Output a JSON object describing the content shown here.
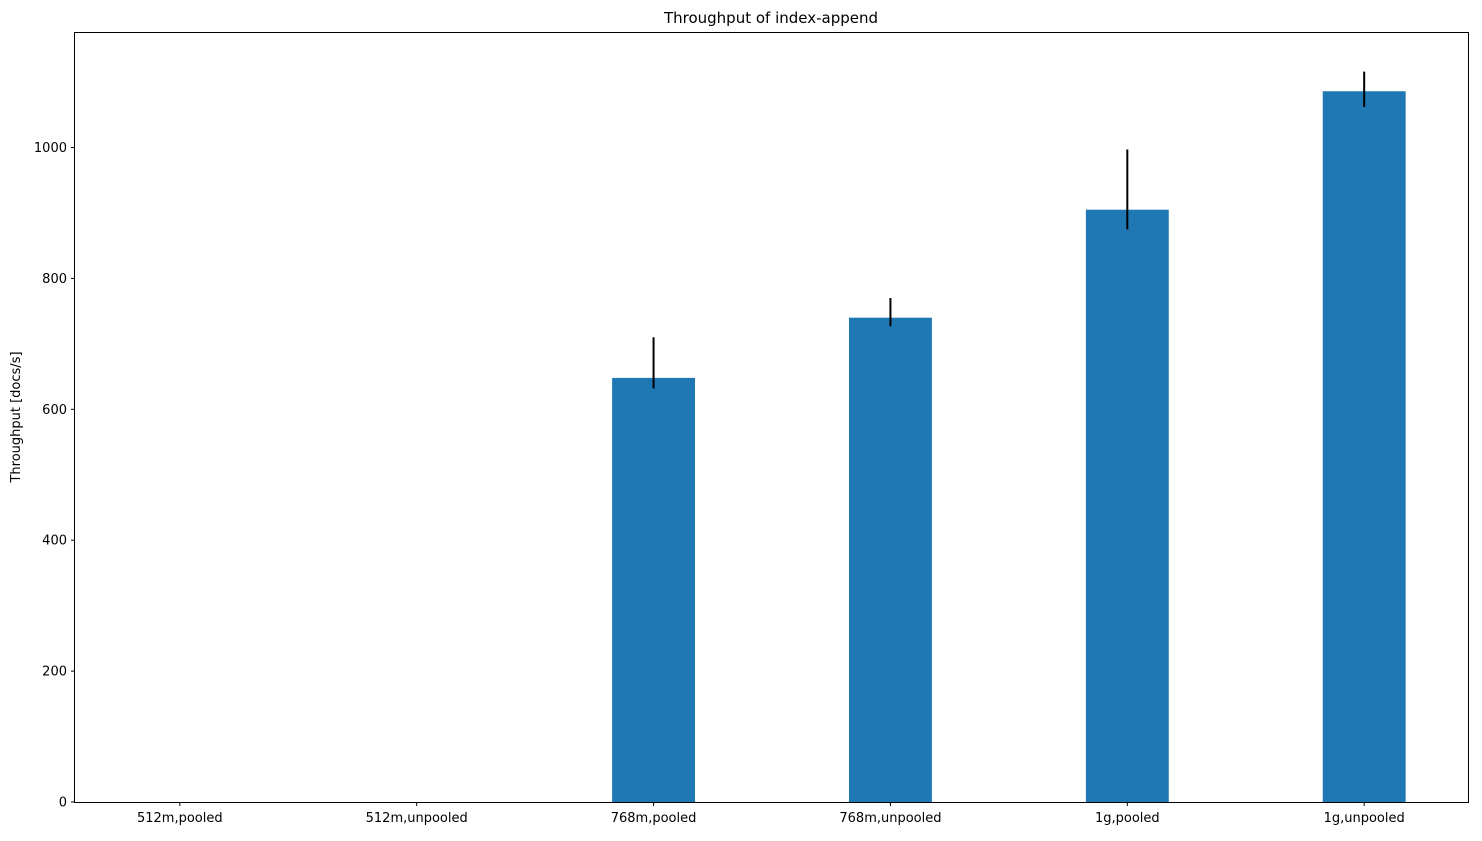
{
  "chart_data": {
    "type": "bar",
    "title": "Throughput of index-append",
    "xlabel": "",
    "ylabel": "Throughput [docs/s]",
    "categories": [
      "512m,pooled",
      "512m,unpooled",
      "768m,pooled",
      "768m,unpooled",
      "1g,pooled",
      "1g,unpooled"
    ],
    "values": [
      null,
      null,
      648,
      740,
      905,
      1086
    ],
    "error_low": [
      null,
      null,
      632,
      727,
      875,
      1062
    ],
    "error_high": [
      null,
      null,
      710,
      770,
      997,
      1116
    ],
    "yticks": [
      0,
      200,
      400,
      600,
      800,
      1000
    ],
    "ylim": [
      0,
      1175
    ],
    "grid": false,
    "bar_color": "#1f77b4",
    "error_color": "#000000"
  }
}
